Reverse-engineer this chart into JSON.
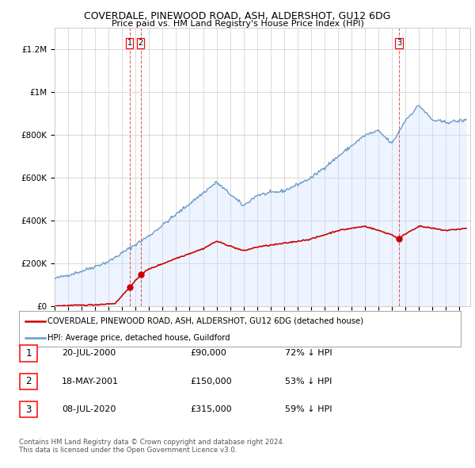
{
  "title1": "COVERDALE, PINEWOOD ROAD, ASH, ALDERSHOT, GU12 6DG",
  "title2": "Price paid vs. HM Land Registry's House Price Index (HPI)",
  "ylabel_ticks": [
    "£0",
    "£200K",
    "£400K",
    "£600K",
    "£800K",
    "£1M",
    "£1.2M"
  ],
  "ytick_values": [
    0,
    200000,
    400000,
    600000,
    800000,
    1000000,
    1200000
  ],
  "ylim": [
    0,
    1300000
  ],
  "xlim_start": 1995.0,
  "xlim_end": 2025.8,
  "legend_line1": "COVERDALE, PINEWOOD ROAD, ASH, ALDERSHOT, GU12 6DG (detached house)",
  "legend_line2": "HPI: Average price, detached house, Guildford",
  "transactions": [
    {
      "num": 1,
      "date": "20-JUL-2000",
      "price": 90000,
      "hpi_diff": "72% ↓ HPI",
      "year": 2000.55
    },
    {
      "num": 2,
      "date": "18-MAY-2001",
      "price": 150000,
      "hpi_diff": "53% ↓ HPI",
      "year": 2001.37
    },
    {
      "num": 3,
      "date": "08-JUL-2020",
      "price": 315000,
      "hpi_diff": "59% ↓ HPI",
      "year": 2020.52
    }
  ],
  "footnote1": "Contains HM Land Registry data © Crown copyright and database right 2024.",
  "footnote2": "This data is licensed under the Open Government Licence v3.0.",
  "color_red": "#cc0000",
  "color_blue": "#6699cc",
  "color_blue_fill": "#cce0ff",
  "background_color": "#ffffff",
  "grid_color": "#cccccc"
}
